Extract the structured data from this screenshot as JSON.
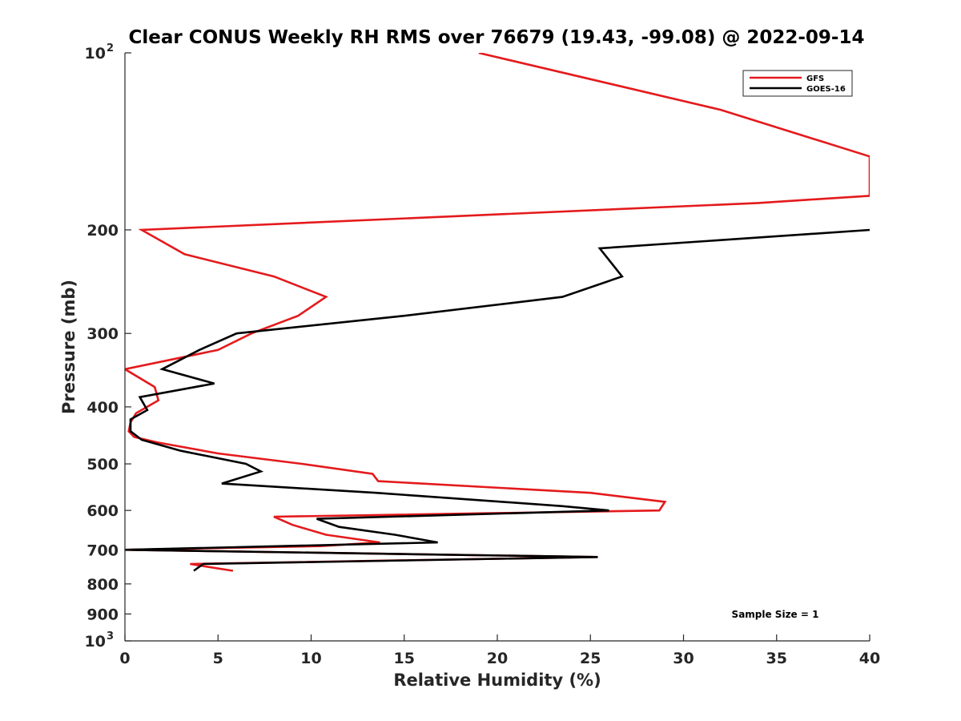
{
  "chart_data": {
    "type": "line",
    "title": "Clear CONUS Weekly RH RMS over 76679 (19.43, -99.08) @ 2022-09-14",
    "xlabel": "Relative Humidity (%)",
    "ylabel": "Pressure (mb)",
    "xlim": [
      0,
      40
    ],
    "ylim": [
      100,
      1000
    ],
    "yscale": "log",
    "y_reversed": true,
    "x_ticks": [
      "0",
      "5",
      "10",
      "15",
      "20",
      "25",
      "30",
      "35",
      "40"
    ],
    "y_ticks": [
      {
        "value": 100,
        "base": "10",
        "exp": "2"
      },
      {
        "value": 200,
        "label": "200"
      },
      {
        "value": 300,
        "label": "300"
      },
      {
        "value": 400,
        "label": "400"
      },
      {
        "value": 500,
        "label": "500"
      },
      {
        "value": 600,
        "label": "600"
      },
      {
        "value": 700,
        "label": "700"
      },
      {
        "value": 800,
        "label": "800"
      },
      {
        "value": 900,
        "label": "900"
      },
      {
        "value": 1000,
        "base": "10",
        "exp": "3"
      }
    ],
    "grid": false,
    "legend_position": "top-right",
    "series": [
      {
        "name": "GFS",
        "color": "#e41a1c",
        "points": [
          [
            19.0,
            100
          ],
          [
            32.0,
            125
          ],
          [
            40.0,
            150
          ],
          [
            40.0,
            175
          ],
          [
            34.0,
            180
          ],
          [
            0.9,
            200
          ],
          [
            3.2,
            220
          ],
          [
            8.0,
            240
          ],
          [
            10.8,
            260
          ],
          [
            9.3,
            280
          ],
          [
            6.8,
            300
          ],
          [
            5.0,
            320
          ],
          [
            0.0,
            345
          ],
          [
            1.6,
            370
          ],
          [
            1.8,
            390
          ],
          [
            0.6,
            410
          ],
          [
            0.3,
            425
          ],
          [
            0.2,
            440
          ],
          [
            0.5,
            450
          ],
          [
            1.8,
            460
          ],
          [
            5.0,
            480
          ],
          [
            9.5,
            500
          ],
          [
            13.3,
            520
          ],
          [
            13.6,
            535
          ],
          [
            25.0,
            560
          ],
          [
            29.0,
            580
          ],
          [
            28.7,
            600
          ],
          [
            8.0,
            615
          ],
          [
            9.0,
            635
          ],
          [
            10.8,
            660
          ],
          [
            13.7,
            680
          ],
          [
            10.5,
            690
          ],
          [
            0.0,
            700
          ],
          [
            25.4,
            720
          ],
          [
            3.5,
            740
          ],
          [
            5.8,
            760
          ]
        ]
      },
      {
        "name": "GOES-16",
        "color": "#000000",
        "points": [
          [
            40.0,
            200
          ],
          [
            25.5,
            215
          ],
          [
            26.7,
            240
          ],
          [
            23.5,
            260
          ],
          [
            15.0,
            280
          ],
          [
            6.0,
            300
          ],
          [
            4.0,
            320
          ],
          [
            2.0,
            345
          ],
          [
            4.8,
            365
          ],
          [
            0.8,
            385
          ],
          [
            1.2,
            405
          ],
          [
            0.3,
            420
          ],
          [
            0.3,
            440
          ],
          [
            0.9,
            455
          ],
          [
            3.0,
            475
          ],
          [
            6.5,
            500
          ],
          [
            7.3,
            515
          ],
          [
            5.2,
            540
          ],
          [
            13.5,
            560
          ],
          [
            23.5,
            590
          ],
          [
            26.0,
            600
          ],
          [
            10.3,
            620
          ],
          [
            11.5,
            640
          ],
          [
            14.5,
            660
          ],
          [
            16.8,
            680
          ],
          [
            0.0,
            700
          ],
          [
            25.4,
            720
          ],
          [
            4.2,
            740
          ],
          [
            3.7,
            760
          ]
        ]
      }
    ],
    "annotation": "Sample Size = 1"
  }
}
